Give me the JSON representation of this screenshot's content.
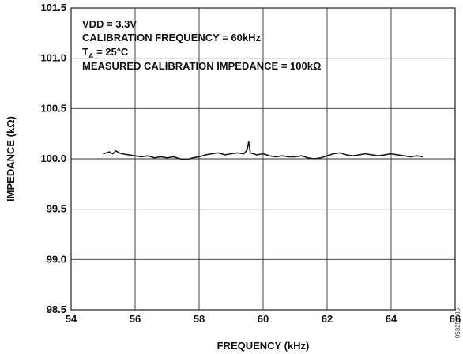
{
  "chart_data": {
    "type": "line",
    "xlabel": "FREQUENCY (kHz)",
    "ylabel": "IMPEDANCE (kΩ)",
    "xlim": [
      54,
      66
    ],
    "ylim": [
      98.5,
      101.5
    ],
    "x_ticks": [
      "54",
      "56",
      "58",
      "60",
      "62",
      "64",
      "66"
    ],
    "y_ticks": [
      "98.5",
      "99.0",
      "99.5",
      "100.0",
      "100.5",
      "101.0",
      "101.5"
    ],
    "grid": true,
    "legend": "none",
    "annotations": {
      "line1": "VDD = 3.3V",
      "line2": "CALIBRATION FREQUENCY = 60kHz",
      "line3_prefix": "T",
      "line3_sub": "A",
      "line3_suffix": " = 25°C",
      "line4": "MEASURED CALIBRATION IMPEDANCE = 100kΩ"
    },
    "figure_id": "05325-086",
    "series": [
      {
        "color": "#1a1a1a",
        "x": [
          55.0,
          55.1,
          55.2,
          55.3,
          55.4,
          55.5,
          55.6,
          55.8,
          56.0,
          56.2,
          56.4,
          56.6,
          56.8,
          57.0,
          57.2,
          57.4,
          57.6,
          57.8,
          58.0,
          58.2,
          58.4,
          58.6,
          58.8,
          59.0,
          59.2,
          59.4,
          59.5,
          59.55,
          59.6,
          59.8,
          60.0,
          60.2,
          60.4,
          60.6,
          60.8,
          61.0,
          61.2,
          61.4,
          61.6,
          61.8,
          62.0,
          62.2,
          62.4,
          62.6,
          62.8,
          63.0,
          63.2,
          63.4,
          63.6,
          63.8,
          64.0,
          64.2,
          64.4,
          64.6,
          64.8,
          65.0
        ],
        "y": [
          100.05,
          100.06,
          100.07,
          100.05,
          100.08,
          100.06,
          100.05,
          100.04,
          100.03,
          100.02,
          100.03,
          100.01,
          100.02,
          100.01,
          100.02,
          100.0,
          99.99,
          100.01,
          100.02,
          100.04,
          100.05,
          100.06,
          100.04,
          100.05,
          100.06,
          100.05,
          100.09,
          100.17,
          100.06,
          100.04,
          100.05,
          100.03,
          100.02,
          100.03,
          100.02,
          100.02,
          100.03,
          100.01,
          100.0,
          100.01,
          100.03,
          100.05,
          100.06,
          100.04,
          100.03,
          100.04,
          100.05,
          100.04,
          100.03,
          100.04,
          100.05,
          100.04,
          100.03,
          100.02,
          100.03,
          100.02
        ]
      }
    ]
  }
}
